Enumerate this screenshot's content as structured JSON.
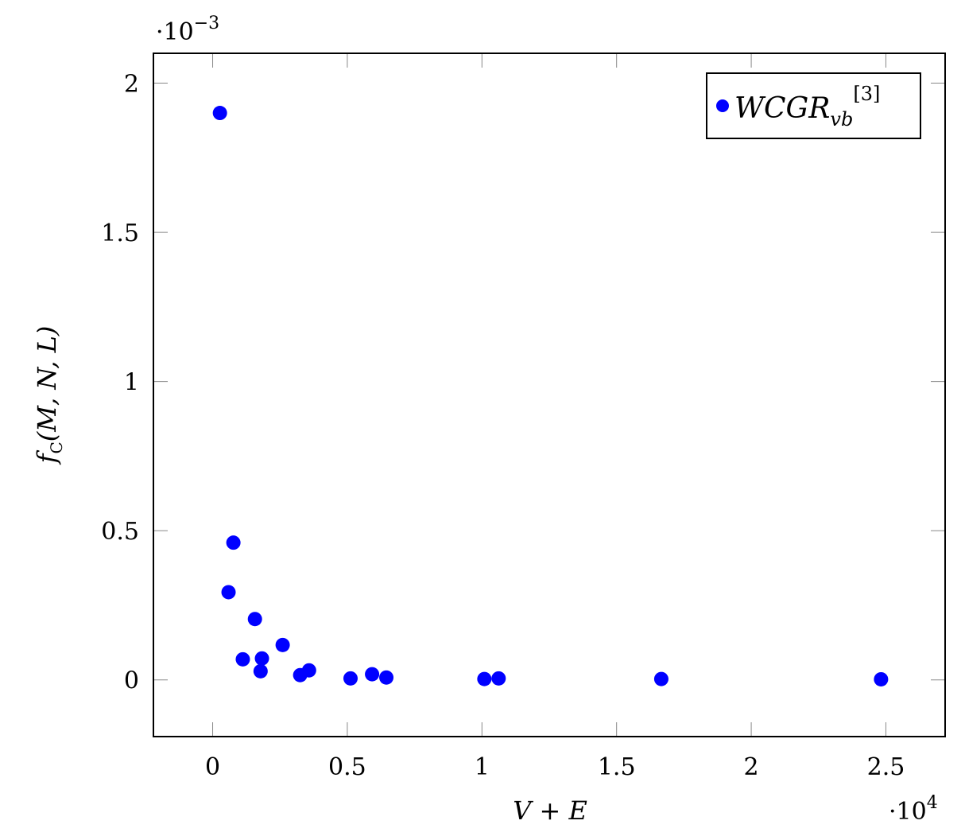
{
  "chart_data": {
    "type": "scatter",
    "title": "",
    "xlabel": "V + E",
    "ylabel": "f_C(M, N, L)",
    "x_scale_label": "·10^4",
    "y_scale_label": "·10^-3",
    "xlim": [
      -2200,
      27200
    ],
    "ylim": [
      -0.00019,
      0.0021
    ],
    "x_ticks": [
      0,
      5000,
      10000,
      15000,
      20000,
      25000
    ],
    "x_tick_labels": [
      "0",
      "0.5",
      "1",
      "1.5",
      "2",
      "2.5"
    ],
    "y_ticks": [
      0,
      0.0005,
      0.001,
      0.0015,
      0.002
    ],
    "y_tick_labels": [
      "0",
      "0.5",
      "1",
      "1.5",
      "2"
    ],
    "grid": false,
    "legend_position": "upper right",
    "series": [
      {
        "name": "WCGR_vb^[3]",
        "color": "#0000ff",
        "marker": "circle",
        "points": [
          {
            "x": 270,
            "y": 0.0019
          },
          {
            "x": 770,
            "y": 0.00046
          },
          {
            "x": 590,
            "y": 0.000294
          },
          {
            "x": 1570,
            "y": 0.000204
          },
          {
            "x": 1120,
            "y": 6.9e-05
          },
          {
            "x": 1780,
            "y": 2.9e-05
          },
          {
            "x": 1830,
            "y": 7.2e-05
          },
          {
            "x": 2600,
            "y": 0.000117
          },
          {
            "x": 3250,
            "y": 1.6e-05
          },
          {
            "x": 3580,
            "y": 3.2e-05
          },
          {
            "x": 5120,
            "y": 5e-06
          },
          {
            "x": 5920,
            "y": 1.9e-05
          },
          {
            "x": 6450,
            "y": 8e-06
          },
          {
            "x": 10090,
            "y": 3e-06
          },
          {
            "x": 10620,
            "y": 5e-06
          },
          {
            "x": 16660,
            "y": 3e-06
          },
          {
            "x": 24820,
            "y": 2e-06
          }
        ]
      }
    ]
  },
  "legend": {
    "main": "WCGR",
    "subscript": "vb",
    "superscript": "[3]"
  },
  "labels": {
    "xlabel": "V + E",
    "ylabel_f": "f",
    "ylabel_sub": "C",
    "ylabel_args": "(M, N, L)",
    "x_scale_base": "·10",
    "x_scale_exp": "4",
    "y_scale_base": "·10",
    "y_scale_exp": "−3"
  }
}
